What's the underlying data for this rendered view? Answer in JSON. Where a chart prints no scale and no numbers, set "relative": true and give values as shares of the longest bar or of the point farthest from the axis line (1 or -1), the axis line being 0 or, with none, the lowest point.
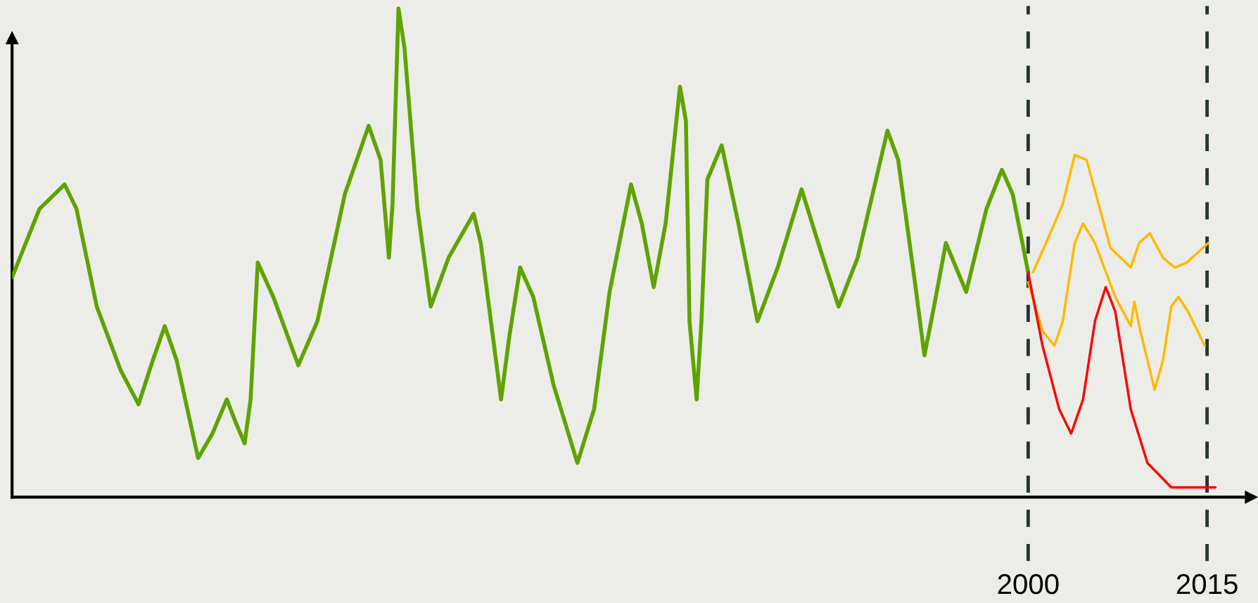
{
  "chart_data": {
    "type": "line",
    "relative": true,
    "xlim": [
      1914.8,
      2018.7
    ],
    "xticks": [
      2000,
      2015
    ],
    "grid": false,
    "marker": "none",
    "line_style": "solid",
    "ref_lines": [
      {
        "axis": "x",
        "value": 2000,
        "color": "#243533",
        "line_style": "dashed"
      },
      {
        "axis": "x",
        "value": 2015,
        "color": "#243533",
        "line_style": "dashed"
      }
    ],
    "series": [
      {
        "color": "#5fa300",
        "x": [
          1914.8,
          1917.1,
          1919.2,
          1920.2,
          1921.9,
          1923.9,
          1925.4,
          1926.6,
          1927.6,
          1928.6,
          1930.4,
          1931.6,
          1932.8,
          1933.6,
          1934.3,
          1934.8,
          1935.4,
          1936.7,
          1938.8,
          1940.4,
          1942.7,
          1944.7,
          1945.7,
          1946.4,
          1946.7,
          1947.2,
          1947.7,
          1948.8,
          1949.9,
          1951.4,
          1953.5,
          1954.1,
          1955.8,
          1956.5,
          1957.4,
          1958.5,
          1960.2,
          1962.2,
          1963.6,
          1964.9,
          1966.7,
          1967.6,
          1968.6,
          1969.6,
          1970.8,
          1971.3,
          1971.6,
          1972.2,
          1972.6,
          1973.1,
          1974.3,
          1975.7,
          1977.3,
          1979.0,
          1981.0,
          1982.4,
          1984.1,
          1985.7,
          1988.2,
          1989.1,
          1990.5,
          1991.3,
          1992.1,
          1993.1,
          1994.8,
          1996.5,
          1997.8,
          1998.7,
          2000.0
        ],
        "values": [
          0.45,
          0.59,
          0.64,
          0.59,
          0.39,
          0.26,
          0.19,
          0.28,
          0.35,
          0.28,
          0.08,
          0.13,
          0.2,
          0.15,
          0.11,
          0.2,
          0.48,
          0.41,
          0.27,
          0.36,
          0.62,
          0.76,
          0.69,
          0.49,
          0.6,
          1.0,
          0.92,
          0.59,
          0.39,
          0.49,
          0.58,
          0.52,
          0.2,
          0.33,
          0.47,
          0.41,
          0.23,
          0.07,
          0.18,
          0.42,
          0.64,
          0.56,
          0.43,
          0.56,
          0.84,
          0.77,
          0.36,
          0.2,
          0.36,
          0.65,
          0.72,
          0.56,
          0.36,
          0.47,
          0.63,
          0.52,
          0.39,
          0.49,
          0.75,
          0.69,
          0.44,
          0.29,
          0.39,
          0.52,
          0.42,
          0.59,
          0.67,
          0.62,
          0.46
        ]
      },
      {
        "color": "#ff0000",
        "x": [
          2000.0,
          2001.2,
          2002.6,
          2003.6,
          2004.6,
          2005.6,
          2006.5,
          2007.3,
          2008.6,
          2010.0,
          2012.0,
          2014.0,
          2015.7
        ],
        "values": [
          0.46,
          0.31,
          0.18,
          0.13,
          0.2,
          0.36,
          0.43,
          0.38,
          0.18,
          0.07,
          0.02,
          0.02,
          0.02
        ]
      },
      {
        "color": "#ffb800",
        "x": [
          2000.4,
          2001.5,
          2002.9,
          2003.9,
          2004.9,
          2006.9,
          2008.6,
          2009.3,
          2010.2,
          2011.3,
          2012.3,
          2013.3,
          2015.1
        ],
        "values": [
          0.46,
          0.52,
          0.6,
          0.7,
          0.69,
          0.51,
          0.47,
          0.52,
          0.54,
          0.49,
          0.47,
          0.48,
          0.52
        ]
      },
      {
        "color": "#ffb800",
        "x": [
          2000.0,
          2001.2,
          2002.2,
          2002.9,
          2003.9,
          2004.6,
          2005.6,
          2007.3,
          2008.6,
          2008.9,
          2009.4,
          2010.6,
          2011.3,
          2012.0,
          2012.6,
          2013.4,
          2014.8
        ],
        "values": [
          0.44,
          0.34,
          0.31,
          0.36,
          0.52,
          0.56,
          0.52,
          0.41,
          0.35,
          0.4,
          0.34,
          0.22,
          0.28,
          0.39,
          0.41,
          0.38,
          0.31
        ]
      }
    ]
  }
}
